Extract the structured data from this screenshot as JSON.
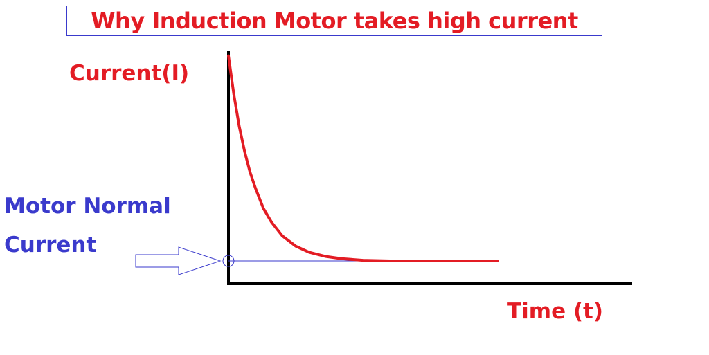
{
  "chart_data": {
    "type": "line",
    "title": "Why Induction Motor takes high current",
    "xlabel": "Time (t)",
    "ylabel": "Current(I)",
    "grid": false,
    "legend": "none",
    "series": [
      {
        "color": "#e31c24",
        "x": [
          0,
          0.02,
          0.04,
          0.06,
          0.08,
          0.1,
          0.13,
          0.16,
          0.2,
          0.25,
          0.3,
          0.36,
          0.42,
          0.5,
          0.6,
          0.7,
          0.8,
          0.9,
          1.0
        ],
        "y": [
          1.0,
          0.83,
          0.69,
          0.58,
          0.49,
          0.42,
          0.33,
          0.27,
          0.21,
          0.165,
          0.138,
          0.12,
          0.11,
          0.103,
          0.1,
          0.1,
          0.1,
          0.1,
          0.1
        ]
      }
    ],
    "xlim": [
      0,
      1.5
    ],
    "ylim": [
      0,
      1.02
    ],
    "annotations": [
      {
        "text_lines": [
          "Motor Normal",
          "Current"
        ],
        "color": "#3a3acc",
        "points_to_y": 0.1
      }
    ]
  }
}
